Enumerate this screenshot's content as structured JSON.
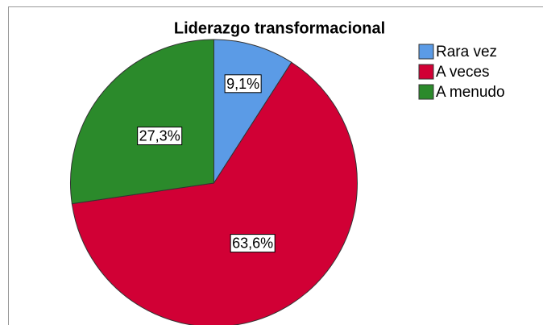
{
  "chart_data": {
    "type": "pie",
    "title": "Liderazgo transformacional",
    "categories": [
      "Rara vez",
      "A veces",
      "A menudo"
    ],
    "values": [
      9.1,
      63.6,
      27.3
    ],
    "value_labels": [
      "9,1%",
      "63,6%",
      "27,3%"
    ],
    "colors": [
      "#5b9be6",
      "#d10035",
      "#2b8a2b"
    ],
    "legend": "right"
  }
}
